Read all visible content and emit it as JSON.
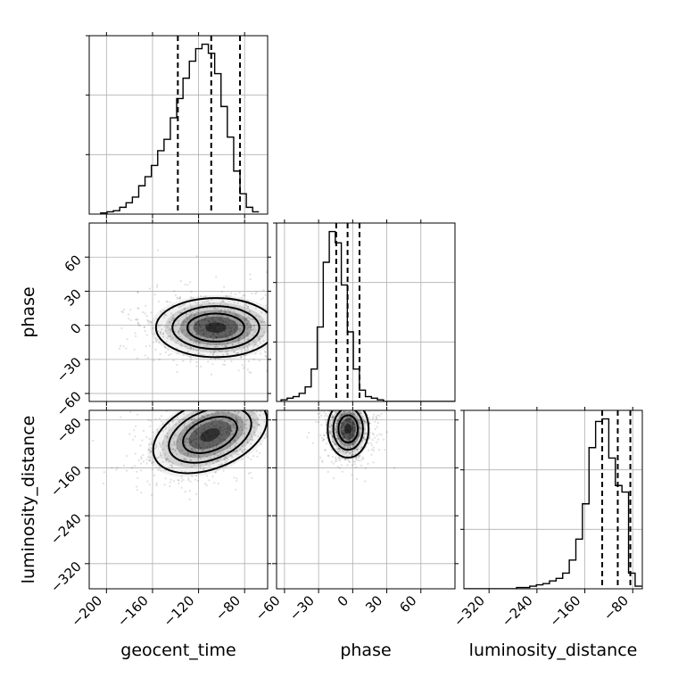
{
  "chart_data": {
    "type": "corner",
    "parameters": [
      "geocent_time",
      "phase",
      "luminosity_distance"
    ],
    "ranges": {
      "geocent_time": [
        -215,
        -60
      ],
      "phase": [
        -67,
        90
      ],
      "luminosity_distance": [
        -362,
        -64
      ]
    },
    "ticks": {
      "geocent_time": [
        -200,
        -160,
        -120,
        -80
      ],
      "phase": [
        -60,
        -30,
        0,
        30,
        60
      ],
      "luminosity_distance": [
        -320,
        -240,
        -160,
        -80
      ]
    },
    "quantiles": {
      "geocent_time": [
        -138,
        -109,
        -84
      ],
      "phase": [
        -14.5,
        -4.5,
        6
      ],
      "luminosity_distance": [
        -131,
        -105,
        -84
      ]
    },
    "histograms": {
      "geocent_time": {
        "start": -205,
        "step": 5.5,
        "counts": [
          1,
          2,
          3,
          6,
          10,
          15,
          25,
          33,
          43,
          56,
          66,
          85,
          102,
          120,
          135,
          146,
          150,
          142,
          124,
          95,
          68,
          38,
          18,
          6,
          2
        ]
      },
      "phase": {
        "start": -63,
        "step": 5.3,
        "counts": [
          1,
          2,
          3,
          5,
          9,
          20,
          46,
          86,
          105,
          98,
          72,
          43,
          20,
          7,
          3,
          2,
          1,
          0,
          0,
          0,
          0,
          0,
          0,
          0,
          0,
          0,
          0,
          0,
          0,
          0
        ]
      },
      "luminosity_distance": {
        "start": -362,
        "step": 11,
        "counts": [
          0,
          0,
          0,
          0,
          0,
          0,
          0,
          0,
          1,
          1,
          2,
          3,
          4,
          6,
          8,
          12,
          22,
          38,
          65,
          108,
          128,
          130,
          100,
          79,
          74,
          12,
          2
        ]
      }
    },
    "density_peaks": [
      {
        "x": "geocent_time",
        "y": "phase",
        "x_center": -105,
        "y_center": -2,
        "x_sd": 26,
        "y_sd": 13
      },
      {
        "x": "geocent_time",
        "y": "luminosity_distance",
        "x_center": -110,
        "y_center": -105,
        "x_sd": 26,
        "y_sd": 28
      },
      {
        "x": "phase",
        "y": "luminosity_distance",
        "x_center": -4,
        "y_center": -95,
        "x_sd": 9,
        "y_sd": 24
      }
    ],
    "grid": true
  }
}
